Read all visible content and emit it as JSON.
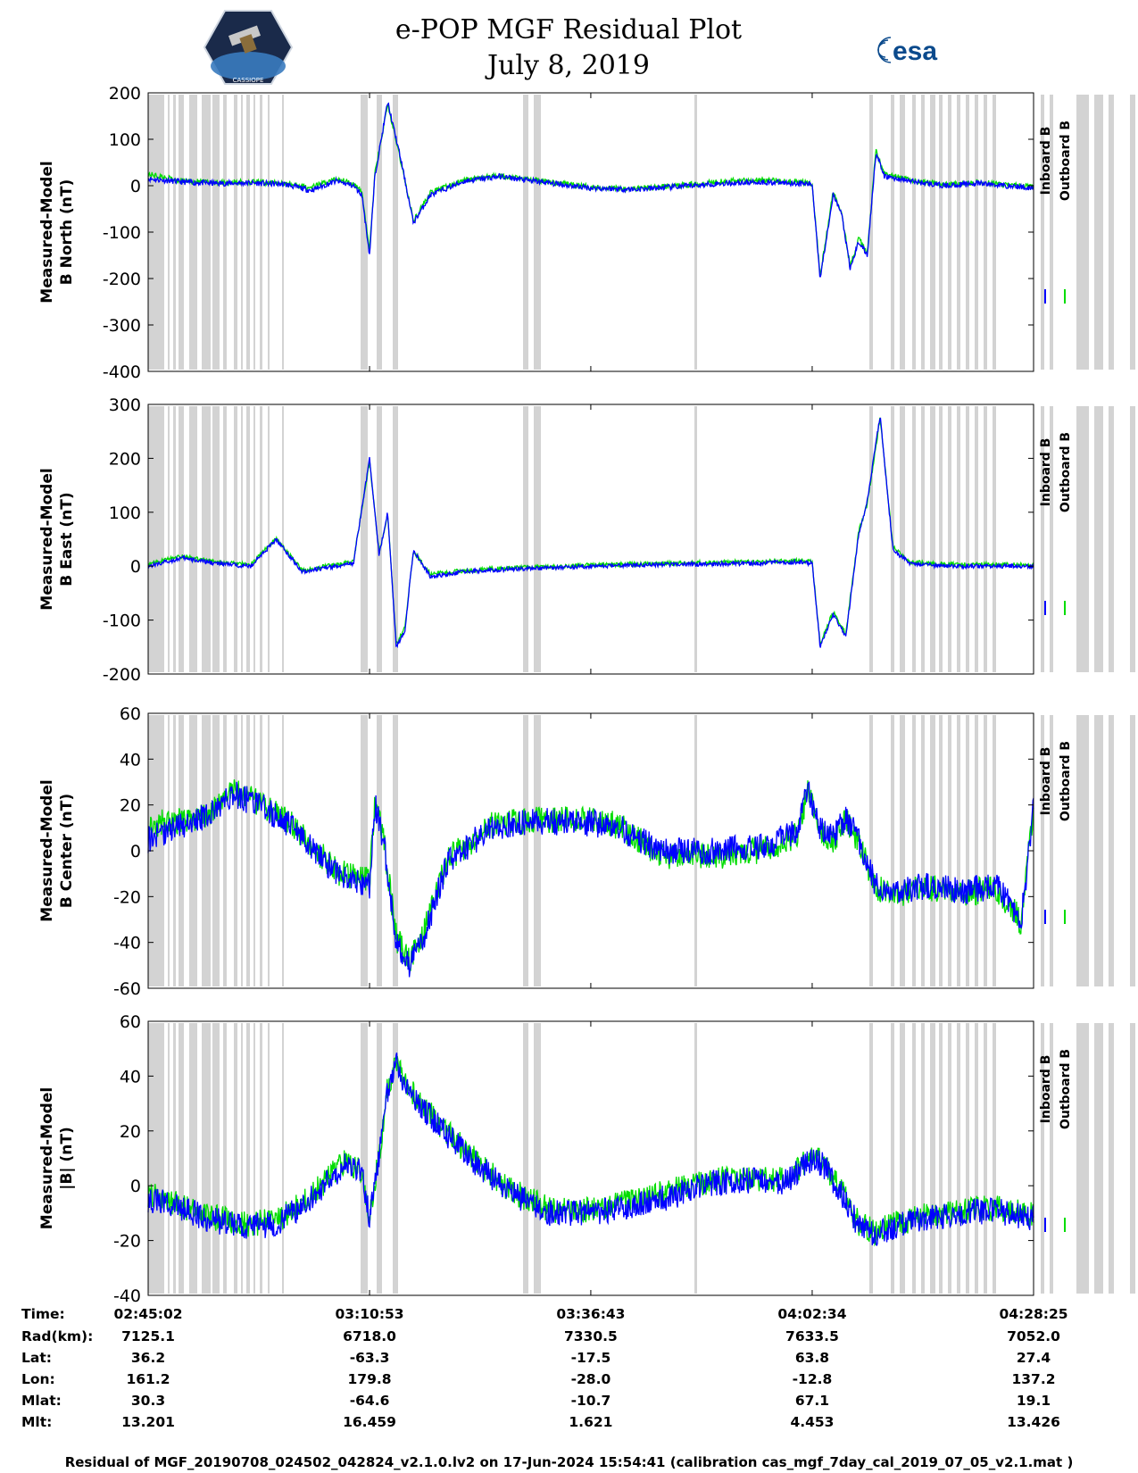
{
  "title": {
    "line1": "e-POP MGF Residual Plot",
    "line2": "July 8, 2019"
  },
  "logos": {
    "left": "CASSIOPE",
    "right": "esa"
  },
  "colors": {
    "inboard": "#0000ff",
    "outboard": "#00dd00",
    "gap_shading": "#d3d3d3",
    "axes": "#000000"
  },
  "chart_data": [
    {
      "type": "line",
      "ylabel": [
        "Measured-Model",
        "B North (nT)"
      ],
      "ylim": [
        -400,
        200
      ],
      "yticks": [
        200,
        100,
        0,
        -100,
        -200,
        -300,
        -400
      ],
      "legend": [
        "Inboard B",
        "Outboard B"
      ],
      "legend_position": "right",
      "x": [
        "02:45:02",
        "02:49:00",
        "02:53:00",
        "02:57:00",
        "03:01:00",
        "03:04:00",
        "03:07:00",
        "03:09:00",
        "03:10:00",
        "03:10:53",
        "03:11:30",
        "03:13:00",
        "03:14:30",
        "03:16:00",
        "03:18:00",
        "03:22:00",
        "03:26:00",
        "03:30:00",
        "03:36:43",
        "03:42:00",
        "03:47:00",
        "03:52:00",
        "03:56:00",
        "04:00:00",
        "04:02:34",
        "04:03:30",
        "04:05:00",
        "04:06:00",
        "04:07:00",
        "04:08:00",
        "04:09:00",
        "04:10:00",
        "04:11:00",
        "04:14:00",
        "04:18:00",
        "04:22:00",
        "04:28:25"
      ],
      "series": [
        {
          "name": "Inboard B",
          "values": [
            15,
            8,
            5,
            6,
            3,
            -10,
            10,
            0,
            -20,
            -150,
            20,
            180,
            60,
            -80,
            -20,
            10,
            20,
            10,
            -5,
            -8,
            -2,
            5,
            8,
            6,
            3,
            -200,
            -20,
            -60,
            -180,
            -120,
            -150,
            70,
            20,
            10,
            0,
            5,
            -5
          ]
        },
        {
          "name": "Outboard B",
          "values": [
            25,
            10,
            7,
            8,
            5,
            -5,
            15,
            5,
            -15,
            -140,
            25,
            175,
            55,
            -75,
            -15,
            12,
            22,
            12,
            -3,
            -6,
            0,
            10,
            12,
            10,
            5,
            -195,
            -15,
            -55,
            -175,
            -115,
            -145,
            75,
            25,
            12,
            2,
            7,
            -3
          ]
        }
      ]
    },
    {
      "type": "line",
      "ylabel": [
        "Measured-Model",
        "B East (nT)"
      ],
      "ylim": [
        -200,
        300
      ],
      "yticks": [
        300,
        200,
        100,
        0,
        -100,
        -200
      ],
      "legend": [
        "Inboard B",
        "Outboard B"
      ],
      "legend_position": "right",
      "x": [
        "02:45:02",
        "02:49:00",
        "02:53:00",
        "02:57:00",
        "03:00:00",
        "03:03:00",
        "03:07:00",
        "03:09:00",
        "03:10:53",
        "03:12:00",
        "03:13:00",
        "03:14:00",
        "03:15:00",
        "03:16:00",
        "03:18:00",
        "03:22:00",
        "03:28:00",
        "03:36:43",
        "03:45:00",
        "03:55:00",
        "04:01:00",
        "04:02:34",
        "04:03:30",
        "04:05:00",
        "04:06:30",
        "04:08:00",
        "04:09:00",
        "04:10:30",
        "04:12:00",
        "04:14:00",
        "04:18:00",
        "04:22:00",
        "04:28:25"
      ],
      "series": [
        {
          "name": "Inboard B",
          "values": [
            0,
            15,
            5,
            0,
            50,
            -10,
            0,
            5,
            200,
            20,
            100,
            -150,
            -120,
            30,
            -20,
            -10,
            -5,
            0,
            3,
            5,
            8,
            5,
            -150,
            -90,
            -130,
            60,
            120,
            280,
            30,
            5,
            0,
            0,
            0
          ]
        },
        {
          "name": "Outboard B",
          "values": [
            5,
            18,
            8,
            3,
            52,
            -8,
            3,
            8,
            195,
            25,
            95,
            -145,
            -115,
            28,
            -15,
            -8,
            -3,
            2,
            5,
            8,
            10,
            8,
            -145,
            -85,
            -125,
            65,
            115,
            275,
            35,
            8,
            3,
            3,
            3
          ]
        }
      ]
    },
    {
      "type": "line",
      "ylabel": [
        "Measured-Model",
        "B Center (nT)"
      ],
      "ylim": [
        -60,
        60
      ],
      "yticks": [
        60,
        40,
        20,
        0,
        -20,
        -40,
        -60
      ],
      "legend": [
        "Inboard B",
        "Outboard B"
      ],
      "legend_position": "right",
      "x": [
        "02:45:02",
        "02:48:00",
        "02:52:00",
        "02:55:00",
        "02:58:00",
        "03:02:00",
        "03:07:00",
        "03:10:53",
        "03:11:30",
        "03:12:30",
        "03:14:00",
        "03:15:30",
        "03:17:00",
        "03:20:00",
        "03:25:00",
        "03:30:00",
        "03:36:43",
        "03:40:00",
        "03:45:00",
        "03:52:00",
        "03:58:00",
        "04:01:00",
        "04:02:00",
        "04:03:30",
        "04:05:00",
        "04:06:30",
        "04:08:00",
        "04:10:00",
        "04:12:00",
        "04:16:00",
        "04:20:00",
        "04:24:00",
        "04:27:00",
        "04:28:25"
      ],
      "series": [
        {
          "name": "Inboard B",
          "values": [
            5,
            10,
            15,
            25,
            20,
            10,
            -10,
            -15,
            20,
            5,
            -40,
            -50,
            -40,
            -5,
            10,
            13,
            12,
            10,
            0,
            0,
            3,
            10,
            28,
            10,
            5,
            15,
            5,
            -15,
            -18,
            -15,
            -18,
            -15,
            -30,
            20
          ]
        },
        {
          "name": "Outboard B",
          "values": [
            12,
            12,
            16,
            26,
            21,
            11,
            -9,
            -13,
            21,
            6,
            -38,
            -48,
            -38,
            -4,
            11,
            14,
            13,
            11,
            -2,
            -2,
            1,
            8,
            26,
            8,
            3,
            14,
            4,
            -16,
            -19,
            -16,
            -19,
            -16,
            -31,
            19
          ]
        }
      ]
    },
    {
      "type": "line",
      "ylabel": [
        "Measured-Model",
        "|B| (nT)"
      ],
      "ylim": [
        -40,
        60
      ],
      "yticks": [
        60,
        40,
        20,
        0,
        -20,
        -40
      ],
      "legend": [
        "Inboard B",
        "Outboard B"
      ],
      "legend_position": "right",
      "x": [
        "02:45:02",
        "02:48:00",
        "02:52:00",
        "02:56:00",
        "03:00:00",
        "03:04:00",
        "03:08:00",
        "03:10:00",
        "03:10:53",
        "03:12:00",
        "03:13:00",
        "03:14:00",
        "03:15:00",
        "03:18:00",
        "03:22:00",
        "03:27:00",
        "03:32:00",
        "03:36:43",
        "03:41:00",
        "03:46:00",
        "03:51:00",
        "03:55:00",
        "03:59:00",
        "04:01:00",
        "04:02:34",
        "04:04:00",
        "04:06:00",
        "04:08:00",
        "04:10:00",
        "04:12:00",
        "04:16:00",
        "04:20:00",
        "04:24:00",
        "04:28:25"
      ],
      "series": [
        {
          "name": "Inboard B",
          "values": [
            -5,
            -7,
            -12,
            -15,
            -14,
            -5,
            8,
            5,
            -12,
            10,
            35,
            45,
            37,
            25,
            12,
            -2,
            -10,
            -10,
            -8,
            -4,
            1,
            2,
            1,
            5,
            10,
            7,
            -3,
            -15,
            -18,
            -15,
            -12,
            -10,
            -9,
            -12
          ]
        },
        {
          "name": "Outboard B",
          "values": [
            -3,
            -6,
            -11,
            -14,
            -13,
            -4,
            9,
            6,
            -11,
            11,
            36,
            46,
            38,
            26,
            13,
            -1,
            -9,
            -9,
            -6,
            -2,
            2,
            3,
            2,
            6,
            11,
            8,
            -2,
            -14,
            -17,
            -14,
            -11,
            -9,
            -8,
            -11
          ]
        }
      ]
    }
  ],
  "x_ticks": [
    "02:45:02",
    "03:10:53",
    "03:36:43",
    "04:02:34",
    "04:28:25"
  ],
  "orbit_table": {
    "rows": [
      {
        "label": "Time:",
        "values": [
          "02:45:02",
          "03:10:53",
          "03:36:43",
          "04:02:34",
          "04:28:25"
        ]
      },
      {
        "label": "Rad(km):",
        "values": [
          "7125.1",
          "6718.0",
          "7330.5",
          "7633.5",
          "7052.0"
        ]
      },
      {
        "label": "Lat:",
        "values": [
          "36.2",
          "-63.3",
          "-17.5",
          "63.8",
          "27.4"
        ]
      },
      {
        "label": "Lon:",
        "values": [
          "161.2",
          "179.8",
          "-28.0",
          "-12.8",
          "137.2"
        ]
      },
      {
        "label": "Mlat:",
        "values": [
          "30.3",
          "-64.6",
          "-10.7",
          "67.1",
          "19.1"
        ]
      },
      {
        "label": "Mlt:",
        "values": [
          "13.201",
          "16.459",
          "1.621",
          "4.453",
          "13.426"
        ]
      }
    ]
  },
  "footer": "Residual of MGF_20190708_024502_042824_v2.1.0.lv2 on 17-Jun-2024 15:54:41 (calibration cas_mgf_7day_cal_2019_07_05_v2.1.mat )"
}
